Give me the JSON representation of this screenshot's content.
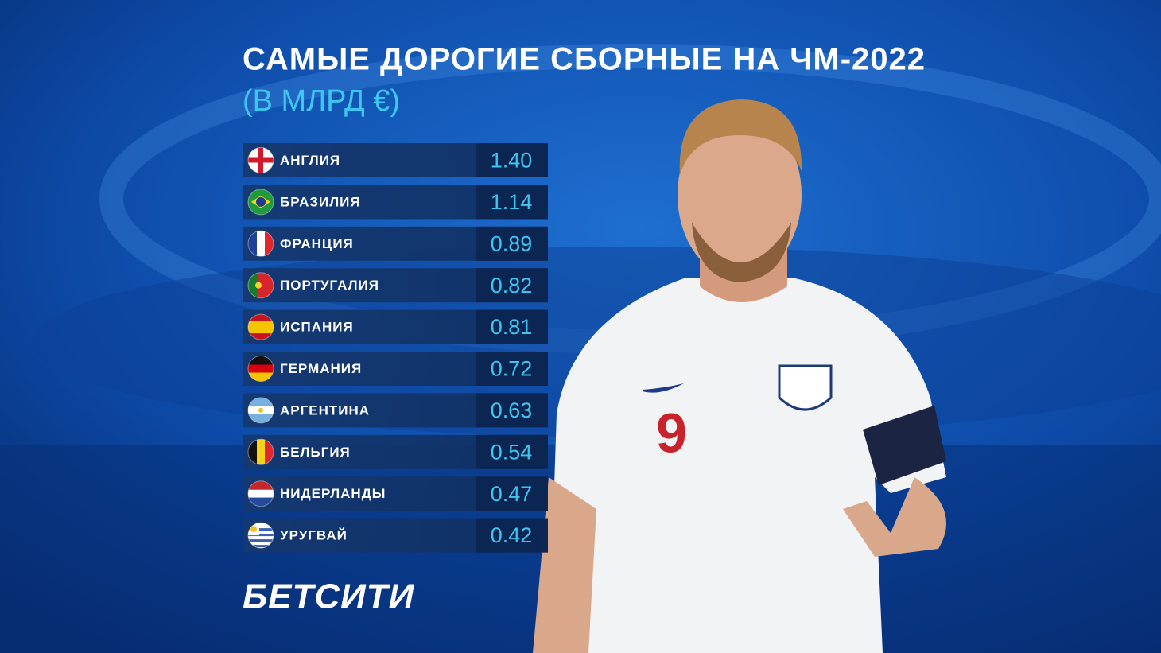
{
  "header": {
    "title": "САМЫЕ ДОРОГИЕ СБОРНЫЕ НА ЧМ-2022",
    "subtitle": "(В МЛРД €)"
  },
  "table": {
    "rows": [
      [
        "АНГЛИЯ",
        "1.40"
      ],
      [
        "БРАЗИЛИЯ",
        "1.14"
      ],
      [
        "ФРАНЦИЯ",
        "0.89"
      ],
      [
        "ПОРТУГАЛИЯ",
        "0.82"
      ],
      [
        "ИСПАНИЯ",
        "0.81"
      ],
      [
        "ГЕРМАНИЯ",
        "0.72"
      ],
      [
        "АРГЕНТИНА",
        "0.63"
      ],
      [
        "БЕЛЬГИЯ",
        "0.54"
      ],
      [
        "НИДЕРЛАНДЫ",
        "0.47"
      ],
      [
        "УРУГВАЙ",
        "0.42"
      ]
    ]
  },
  "brand": "БЕТСИТИ"
}
